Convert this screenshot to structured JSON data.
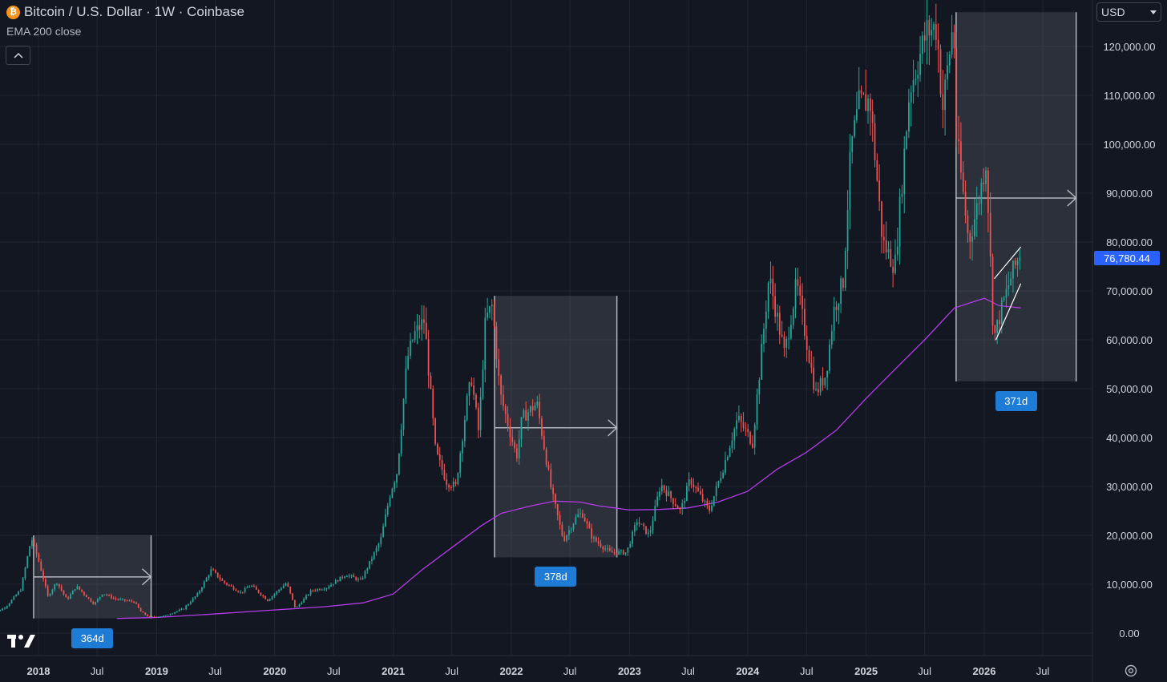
{
  "header": {
    "coin_icon_glyph": "₿",
    "title": "Bitcoin / U.S. Dollar · 1W · Coinbase",
    "indicator": "EMA 200 close"
  },
  "currency": {
    "selected": "USD",
    "icon": "chevron-down-icon"
  },
  "last_price": "76,780.44",
  "colors": {
    "background": "#131722",
    "grid": "#232632",
    "up": "#26a69a",
    "down": "#ef5350",
    "ema": "#b33ce8",
    "price_tag": "#2962ff",
    "zone": "rgba(120,123,134,0.25)",
    "label": "#1e7bd6"
  },
  "chart_data": {
    "type": "candlestick",
    "title": "Bitcoin / U.S. Dollar · 1W · Coinbase",
    "y_axis": {
      "range": [
        -2000,
        128000
      ],
      "ticks": [
        0,
        10000,
        20000,
        30000,
        40000,
        50000,
        60000,
        70000,
        80000,
        90000,
        100000,
        110000,
        120000
      ],
      "tick_labels": [
        "0.00",
        "10,000.00",
        "20,000.00",
        "30,000.00",
        "40,000.00",
        "50,000.00",
        "60,000.00",
        "70,000.00",
        "80,000.00",
        "90,000.00",
        "100,000.00",
        "110,000.00",
        "120,000.00"
      ]
    },
    "x_axis": {
      "range": [
        "2017-08-01",
        "2026-09-01"
      ],
      "ticks": [
        {
          "date": "2018-01-01",
          "label": "2018",
          "bold": true
        },
        {
          "date": "2018-07-01",
          "label": "Jul",
          "bold": false
        },
        {
          "date": "2019-01-01",
          "label": "2019",
          "bold": true
        },
        {
          "date": "2019-07-01",
          "label": "Jul",
          "bold": false
        },
        {
          "date": "2020-01-01",
          "label": "2020",
          "bold": true
        },
        {
          "date": "2020-07-01",
          "label": "Jul",
          "bold": false
        },
        {
          "date": "2021-01-01",
          "label": "2021",
          "bold": true
        },
        {
          "date": "2021-07-01",
          "label": "Jul",
          "bold": false
        },
        {
          "date": "2022-01-01",
          "label": "2022",
          "bold": true
        },
        {
          "date": "2022-07-01",
          "label": "Jul",
          "bold": false
        },
        {
          "date": "2023-01-01",
          "label": "2023",
          "bold": true
        },
        {
          "date": "2023-07-01",
          "label": "Jul",
          "bold": false
        },
        {
          "date": "2024-01-01",
          "label": "2024",
          "bold": true
        },
        {
          "date": "2024-07-01",
          "label": "Jul",
          "bold": false
        },
        {
          "date": "2025-01-01",
          "label": "2025",
          "bold": true
        },
        {
          "date": "2025-07-01",
          "label": "Jul",
          "bold": false
        },
        {
          "date": "2026-01-01",
          "label": "2026",
          "bold": true
        },
        {
          "date": "2026-07-01",
          "label": "Jul",
          "bold": false
        }
      ]
    },
    "price_path": [
      [
        "2017-08-01",
        3000
      ],
      [
        "2017-10-01",
        5500
      ],
      [
        "2017-11-15",
        9000
      ],
      [
        "2017-12-17",
        19500
      ],
      [
        "2018-01-10",
        14500
      ],
      [
        "2018-02-06",
        7500
      ],
      [
        "2018-03-05",
        10500
      ],
      [
        "2018-04-06",
        6800
      ],
      [
        "2018-05-05",
        9600
      ],
      [
        "2018-06-29",
        5900
      ],
      [
        "2018-07-25",
        8200
      ],
      [
        "2018-09-01",
        7000
      ],
      [
        "2018-10-31",
        6400
      ],
      [
        "2018-11-20",
        4400
      ],
      [
        "2018-12-15",
        3300
      ],
      [
        "2019-02-01",
        3500
      ],
      [
        "2019-04-01",
        5000
      ],
      [
        "2019-05-15",
        8000
      ],
      [
        "2019-06-26",
        13000
      ],
      [
        "2019-08-01",
        10500
      ],
      [
        "2019-09-25",
        8300
      ],
      [
        "2019-10-26",
        9800
      ],
      [
        "2019-12-17",
        6700
      ],
      [
        "2020-02-13",
        10300
      ],
      [
        "2020-03-12",
        5000
      ],
      [
        "2020-04-30",
        8700
      ],
      [
        "2020-06-15",
        9300
      ],
      [
        "2020-08-15",
        12000
      ],
      [
        "2020-09-30",
        10700
      ],
      [
        "2020-11-30",
        19000
      ],
      [
        "2020-12-31",
        29000
      ],
      [
        "2021-01-20",
        33000
      ],
      [
        "2021-02-20",
        56000
      ],
      [
        "2021-03-13",
        61000
      ],
      [
        "2021-04-14",
        64000
      ],
      [
        "2021-05-19",
        37000
      ],
      [
        "2021-06-22",
        31000
      ],
      [
        "2021-07-20",
        30000
      ],
      [
        "2021-08-25",
        48000
      ],
      [
        "2021-09-07",
        52000
      ],
      [
        "2021-09-29",
        41000
      ],
      [
        "2021-10-20",
        64000
      ],
      [
        "2021-11-10",
        67000
      ],
      [
        "2021-12-04",
        49000
      ],
      [
        "2022-01-24",
        36000
      ],
      [
        "2022-02-10",
        44000
      ],
      [
        "2022-03-28",
        47000
      ],
      [
        "2022-05-12",
        29000
      ],
      [
        "2022-06-18",
        19000
      ],
      [
        "2022-07-30",
        24000
      ],
      [
        "2022-08-15",
        24500
      ],
      [
        "2022-09-15",
        19500
      ],
      [
        "2022-11-09",
        16500
      ],
      [
        "2022-12-30",
        16500
      ],
      [
        "2023-01-31",
        23000
      ],
      [
        "2023-03-10",
        20000
      ],
      [
        "2023-04-14",
        30500
      ],
      [
        "2023-06-15",
        25000
      ],
      [
        "2023-07-14",
        31500
      ],
      [
        "2023-09-11",
        25000
      ],
      [
        "2023-10-25",
        34000
      ],
      [
        "2023-12-08",
        44000
      ],
      [
        "2024-01-23",
        39000
      ],
      [
        "2024-03-14",
        73000
      ],
      [
        "2024-05-01",
        57000
      ],
      [
        "2024-06-07",
        71500
      ],
      [
        "2024-08-05",
        49000
      ],
      [
        "2024-09-06",
        53000
      ],
      [
        "2024-09-30",
        66000
      ],
      [
        "2024-10-29",
        72000
      ],
      [
        "2024-11-22",
        99000
      ],
      [
        "2024-12-17",
        108000
      ],
      [
        "2025-01-20",
        109000
      ],
      [
        "2025-02-28",
        80000
      ],
      [
        "2025-04-07",
        75000
      ],
      [
        "2025-05-22",
        111000
      ],
      [
        "2025-07-14",
        123000
      ],
      [
        "2025-08-14",
        124000
      ],
      [
        "2025-09-01",
        107000
      ],
      [
        "2025-10-06",
        126000
      ],
      [
        "2025-10-10",
        104000
      ],
      [
        "2025-11-21",
        80000
      ],
      [
        "2025-12-20",
        88000
      ],
      [
        "2026-01-14",
        97000
      ],
      [
        "2026-02-06",
        60000
      ],
      [
        "2026-03-01",
        66000
      ],
      [
        "2026-04-01",
        73000
      ],
      [
        "2026-04-24",
        76780
      ]
    ],
    "ema200_path": [
      [
        "2018-09-01",
        3000
      ],
      [
        "2019-01-01",
        3200
      ],
      [
        "2019-06-01",
        3800
      ],
      [
        "2019-12-01",
        4600
      ],
      [
        "2020-06-01",
        5400
      ],
      [
        "2020-10-01",
        6200
      ],
      [
        "2021-01-01",
        8000
      ],
      [
        "2021-04-01",
        13000
      ],
      [
        "2021-07-01",
        17500
      ],
      [
        "2021-10-01",
        22000
      ],
      [
        "2021-12-01",
        24500
      ],
      [
        "2022-03-01",
        26000
      ],
      [
        "2022-05-15",
        27000
      ],
      [
        "2022-08-01",
        26800
      ],
      [
        "2022-10-01",
        26000
      ],
      [
        "2023-01-01",
        25200
      ],
      [
        "2023-04-01",
        25300
      ],
      [
        "2023-07-01",
        25600
      ],
      [
        "2023-10-01",
        26800
      ],
      [
        "2024-01-01",
        29000
      ],
      [
        "2024-04-01",
        33500
      ],
      [
        "2024-07-01",
        37000
      ],
      [
        "2024-10-01",
        41500
      ],
      [
        "2025-01-01",
        48000
      ],
      [
        "2025-04-01",
        54000
      ],
      [
        "2025-07-01",
        60000
      ],
      [
        "2025-10-01",
        66500
      ],
      [
        "2026-01-01",
        68500
      ],
      [
        "2026-02-15",
        67000
      ],
      [
        "2026-04-24",
        66500
      ]
    ],
    "date_ranges": [
      {
        "start": "2017-12-17",
        "end": "2018-12-15",
        "top": 20000,
        "bottom": 3000,
        "arrow_price": 11500,
        "label": "364d"
      },
      {
        "start": "2021-11-10",
        "end": "2022-11-23",
        "top": 69000,
        "bottom": 15500,
        "arrow_price": 42000,
        "label": "378d"
      },
      {
        "start": "2025-10-06",
        "end": "2026-10-12",
        "top": 127000,
        "bottom": 51500,
        "arrow_price": 89000,
        "label": "371d"
      }
    ],
    "trendlines": [
      {
        "from": [
          "2026-02-06",
          60000
        ],
        "to": [
          "2026-04-24",
          71500
        ]
      },
      {
        "from": [
          "2026-02-01",
          72500
        ],
        "to": [
          "2026-04-24",
          79000
        ]
      }
    ]
  }
}
